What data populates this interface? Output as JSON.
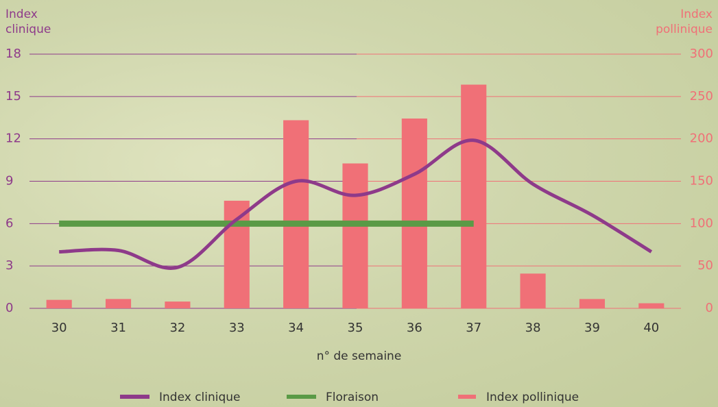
{
  "chart_data": {
    "type": "combo",
    "y_label": "Index clinique",
    "y2_label": "Index pollinique",
    "x_label": "n° de semaine",
    "categories": [
      "30",
      "31",
      "32",
      "33",
      "34",
      "35",
      "36",
      "37",
      "38",
      "39",
      "40"
    ],
    "series": [
      {
        "name": "Index clinique",
        "type": "line",
        "smooth": true,
        "color": "#8e3a8a",
        "axis": "y",
        "values": [
          4.0,
          4.1,
          2.9,
          6.3,
          9.0,
          8.0,
          9.5,
          11.9,
          8.8,
          6.6,
          4.0
        ]
      },
      {
        "name": "Floraison",
        "type": "line",
        "smooth": false,
        "color": "#5a9a46",
        "axis": "y",
        "values": [
          6,
          6,
          6,
          6,
          6,
          6,
          6,
          6,
          null,
          null,
          null
        ]
      },
      {
        "name": "Index pollinique",
        "type": "bar",
        "color": "#f07077",
        "axis": "y2",
        "values": [
          10,
          11,
          8,
          127,
          222,
          171,
          224,
          264,
          41,
          11,
          6
        ]
      }
    ],
    "ylim": [
      0,
      18
    ],
    "yticks": [
      0,
      3,
      6,
      9,
      12,
      15,
      18
    ],
    "y2lim": [
      0,
      300
    ],
    "y2ticks": [
      0,
      50,
      100,
      150,
      200,
      250,
      300
    ],
    "grid": true,
    "legend": "bottom"
  }
}
